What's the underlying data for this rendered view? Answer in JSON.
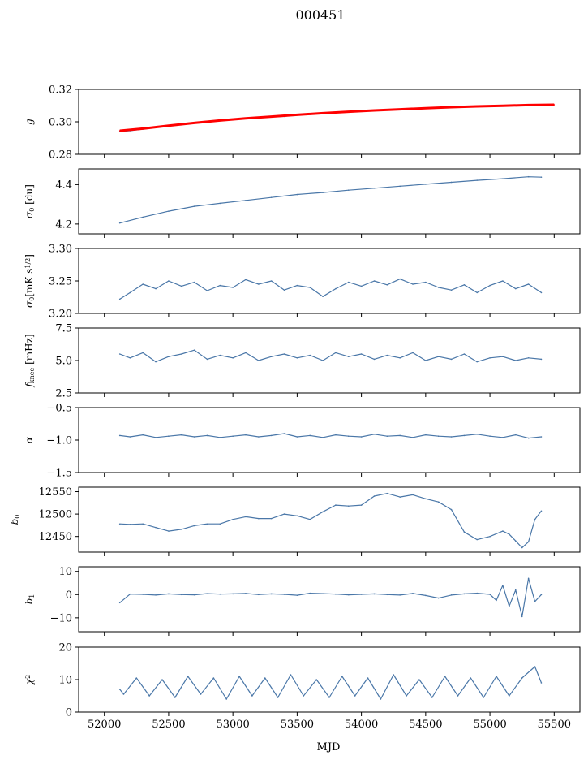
{
  "figure": {
    "title": "000451",
    "xlabel": "MJD"
  },
  "colors": {
    "series": "#4a77a8",
    "fit": "#ff0000"
  },
  "chart_data": [
    {
      "type": "line",
      "ylabel": "g",
      "ylim": [
        0.28,
        0.32
      ],
      "yticks": [
        "0.28",
        "0.30",
        "0.32"
      ],
      "xlim": [
        51800,
        55700
      ],
      "series": [
        {
          "name": "g",
          "x": [
            52120,
            52200,
            52300,
            52400,
            52500,
            52600,
            52700,
            52800,
            52900,
            53000,
            53100,
            53200,
            53300,
            53400,
            53500,
            53600,
            53700,
            53800,
            53900,
            54000,
            54100,
            54200,
            54300,
            54400,
            54500,
            54600,
            54700,
            54800,
            54900,
            55000,
            55100,
            55200,
            55300,
            55400
          ],
          "y": [
            0.294,
            0.2945,
            0.2955,
            0.2965,
            0.2975,
            0.2985,
            0.2995,
            0.3,
            0.301,
            0.3015,
            0.302,
            0.3025,
            0.303,
            0.3033,
            0.3043,
            0.305,
            0.3053,
            0.3058,
            0.3063,
            0.3067,
            0.307,
            0.3073,
            0.3075,
            0.3078,
            0.3083,
            0.3088,
            0.309,
            0.3093,
            0.3095,
            0.3097,
            0.3098,
            0.31,
            0.3102,
            0.3105
          ]
        },
        {
          "name": "g fit",
          "x": [
            52120,
            52300,
            52500,
            52700,
            52900,
            53100,
            53300,
            53500,
            53700,
            53900,
            54100,
            54300,
            54500,
            54700,
            54900,
            55100,
            55300,
            55500
          ],
          "y": [
            0.2945,
            0.2958,
            0.2976,
            0.2993,
            0.3008,
            0.3021,
            0.3032,
            0.3043,
            0.3053,
            0.3062,
            0.307,
            0.3077,
            0.3084,
            0.309,
            0.3095,
            0.3099,
            0.3103,
            0.3105
          ]
        }
      ]
    },
    {
      "type": "line",
      "ylabel": "σ0 [du]",
      "ylim": [
        4.15,
        4.48
      ],
      "yticks": [
        "4.2",
        "4.4"
      ],
      "xlim": [
        51800,
        55700
      ],
      "series": [
        {
          "name": "sigma0_du",
          "x": [
            52120,
            52300,
            52500,
            52700,
            52900,
            53100,
            53300,
            53500,
            53700,
            53900,
            54100,
            54300,
            54500,
            54700,
            54900,
            55100,
            55300,
            55400
          ],
          "y": [
            4.205,
            4.235,
            4.265,
            4.29,
            4.305,
            4.32,
            4.335,
            4.35,
            4.36,
            4.372,
            4.382,
            4.392,
            4.402,
            4.412,
            4.422,
            4.43,
            4.44,
            4.438
          ]
        }
      ]
    },
    {
      "type": "line",
      "ylabel": "σ0[mK s^1/2]",
      "ylim": [
        3.2,
        3.3
      ],
      "yticks": [
        "3.20",
        "3.25",
        "3.30"
      ],
      "xlim": [
        51800,
        55700
      ],
      "series": [
        {
          "name": "sigma0_mK",
          "x": [
            52120,
            52200,
            52300,
            52400,
            52500,
            52600,
            52700,
            52800,
            52900,
            53000,
            53100,
            53200,
            53300,
            53400,
            53500,
            53600,
            53700,
            53800,
            53900,
            54000,
            54100,
            54200,
            54300,
            54400,
            54500,
            54600,
            54700,
            54800,
            54900,
            55000,
            55100,
            55200,
            55300,
            55400
          ],
          "y": [
            3.222,
            3.232,
            3.245,
            3.238,
            3.25,
            3.242,
            3.248,
            3.235,
            3.243,
            3.24,
            3.252,
            3.245,
            3.25,
            3.236,
            3.243,
            3.24,
            3.226,
            3.238,
            3.248,
            3.242,
            3.25,
            3.244,
            3.253,
            3.245,
            3.248,
            3.24,
            3.236,
            3.244,
            3.232,
            3.243,
            3.25,
            3.238,
            3.245,
            3.232
          ]
        }
      ]
    },
    {
      "type": "line",
      "ylabel": "f_knee [mHz]",
      "ylim": [
        2.5,
        7.5
      ],
      "yticks": [
        "2.5",
        "5.0",
        "7.5"
      ],
      "xlim": [
        51800,
        55700
      ],
      "series": [
        {
          "name": "fknee",
          "x": [
            52120,
            52200,
            52300,
            52400,
            52500,
            52600,
            52700,
            52800,
            52900,
            53000,
            53100,
            53200,
            53300,
            53400,
            53500,
            53600,
            53700,
            53800,
            53900,
            54000,
            54100,
            54200,
            54300,
            54400,
            54500,
            54600,
            54700,
            54800,
            54900,
            55000,
            55100,
            55200,
            55300,
            55400
          ],
          "y": [
            5.5,
            5.2,
            5.6,
            4.9,
            5.3,
            5.5,
            5.8,
            5.1,
            5.4,
            5.2,
            5.6,
            5.0,
            5.3,
            5.5,
            5.2,
            5.4,
            5.0,
            5.6,
            5.3,
            5.5,
            5.1,
            5.4,
            5.2,
            5.6,
            5.0,
            5.3,
            5.1,
            5.5,
            4.9,
            5.2,
            5.3,
            5.0,
            5.2,
            5.1
          ]
        }
      ]
    },
    {
      "type": "line",
      "ylabel": "α",
      "ylim": [
        -1.5,
        -0.5
      ],
      "yticks": [
        "−1.5",
        "−1.0",
        "−0.5"
      ],
      "xlim": [
        51800,
        55700
      ],
      "series": [
        {
          "name": "alpha",
          "x": [
            52120,
            52200,
            52300,
            52400,
            52500,
            52600,
            52700,
            52800,
            52900,
            53000,
            53100,
            53200,
            53300,
            53400,
            53500,
            53600,
            53700,
            53800,
            53900,
            54000,
            54100,
            54200,
            54300,
            54400,
            54500,
            54600,
            54700,
            54800,
            54900,
            55000,
            55100,
            55200,
            55300,
            55400
          ],
          "y": [
            -0.93,
            -0.95,
            -0.92,
            -0.96,
            -0.94,
            -0.92,
            -0.95,
            -0.93,
            -0.96,
            -0.94,
            -0.92,
            -0.95,
            -0.93,
            -0.9,
            -0.95,
            -0.93,
            -0.96,
            -0.92,
            -0.94,
            -0.95,
            -0.91,
            -0.94,
            -0.93,
            -0.96,
            -0.92,
            -0.94,
            -0.95,
            -0.93,
            -0.91,
            -0.94,
            -0.96,
            -0.92,
            -0.97,
            -0.95
          ]
        }
      ]
    },
    {
      "type": "line",
      "ylabel": "b0",
      "ylim": [
        12415,
        12560
      ],
      "yticks": [
        "12450",
        "12500",
        "12550"
      ],
      "xlim": [
        51800,
        55700
      ],
      "series": [
        {
          "name": "b0",
          "x": [
            52120,
            52200,
            52300,
            52400,
            52500,
            52600,
            52700,
            52800,
            52900,
            53000,
            53100,
            53200,
            53300,
            53400,
            53500,
            53600,
            53700,
            53800,
            53900,
            54000,
            54100,
            54200,
            54300,
            54400,
            54500,
            54600,
            54700,
            54800,
            54900,
            55000,
            55100,
            55150,
            55200,
            55250,
            55300,
            55350,
            55400
          ],
          "y": [
            12478,
            12477,
            12478,
            12470,
            12462,
            12466,
            12474,
            12478,
            12478,
            12488,
            12494,
            12490,
            12490,
            12500,
            12496,
            12488,
            12505,
            12520,
            12518,
            12520,
            12540,
            12546,
            12538,
            12543,
            12534,
            12527,
            12510,
            12460,
            12443,
            12450,
            12462,
            12455,
            12440,
            12425,
            12438,
            12488,
            12507
          ]
        }
      ]
    },
    {
      "type": "line",
      "ylabel": "b1",
      "ylim": [
        -16,
        12
      ],
      "yticks": [
        "−10",
        "0",
        "10"
      ],
      "xlim": [
        51800,
        55700
      ],
      "series": [
        {
          "name": "b1",
          "x": [
            52120,
            52200,
            52300,
            52400,
            52500,
            52600,
            52700,
            52800,
            52900,
            53000,
            53100,
            53200,
            53300,
            53400,
            53500,
            53600,
            53700,
            53800,
            53900,
            54000,
            54100,
            54200,
            54300,
            54400,
            54500,
            54600,
            54700,
            54800,
            54900,
            55000,
            55050,
            55100,
            55150,
            55200,
            55250,
            55300,
            55350,
            55400
          ],
          "y": [
            -3.5,
            0.2,
            0.1,
            -0.2,
            0.3,
            0.0,
            -0.1,
            0.4,
            0.2,
            0.3,
            0.5,
            0.0,
            0.3,
            0.1,
            -0.3,
            0.6,
            0.4,
            0.2,
            -0.1,
            0.1,
            0.3,
            0.0,
            -0.2,
            0.5,
            -0.4,
            -1.5,
            -0.2,
            0.3,
            0.6,
            0.1,
            -2.5,
            4.0,
            -5.0,
            2.0,
            -9.5,
            7.0,
            -3.0,
            0.0
          ]
        }
      ]
    },
    {
      "type": "line",
      "ylabel": "χ²",
      "ylim": [
        0,
        20
      ],
      "yticks": [
        "0",
        "10",
        "20"
      ],
      "xlim": [
        51800,
        55700
      ],
      "xticks": [
        "52000",
        "52500",
        "53000",
        "53500",
        "54000",
        "54500",
        "55000",
        "55500"
      ],
      "series": [
        {
          "name": "chi2",
          "x": [
            52120,
            52150,
            52250,
            52350,
            52450,
            52550,
            52650,
            52750,
            52850,
            52950,
            53050,
            53150,
            53250,
            53350,
            53450,
            53550,
            53650,
            53750,
            53850,
            53950,
            54050,
            54150,
            54250,
            54350,
            54450,
            54550,
            54650,
            54750,
            54850,
            54950,
            55050,
            55150,
            55250,
            55350,
            55400
          ],
          "y": [
            7,
            5.5,
            10.5,
            5.0,
            10.0,
            4.5,
            11.0,
            5.5,
            10.5,
            4.0,
            11.0,
            5.0,
            10.5,
            4.5,
            11.5,
            5.0,
            10.0,
            4.5,
            11.0,
            5.0,
            10.5,
            4.0,
            11.5,
            5.0,
            10.0,
            4.5,
            11.0,
            5.0,
            10.5,
            4.5,
            11.0,
            5.0,
            10.5,
            14.0,
            9.0
          ]
        }
      ]
    }
  ]
}
